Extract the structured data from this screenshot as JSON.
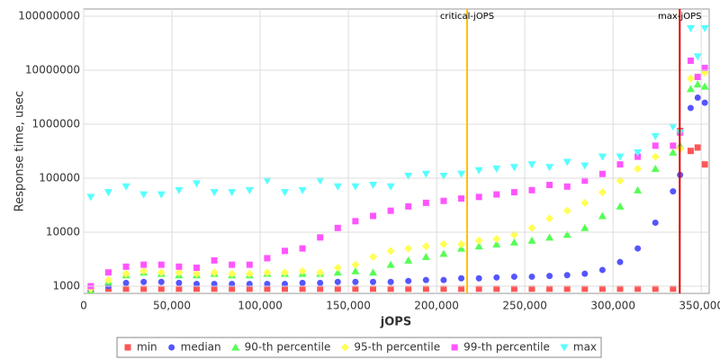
{
  "chart_data": {
    "type": "scatter",
    "y_label": "Response time, usec",
    "x_label": "jOPS",
    "log_y": true,
    "grid": true,
    "legend_position": "bottom",
    "xlim": [
      0,
      354500
    ],
    "ylim": [
      736,
      136000000
    ],
    "xticks": [
      0,
      {
        "value": 50000,
        "label": "50,000"
      },
      {
        "value": 100000,
        "label": "100,000"
      },
      {
        "value": 150000,
        "label": "150,000"
      },
      {
        "value": 200000,
        "label": "200,000"
      },
      {
        "value": 250000,
        "label": "250,000"
      },
      {
        "value": 300000,
        "label": "300,000"
      },
      {
        "value": 350000,
        "label": "350,000"
      }
    ],
    "yticks": [
      1000,
      10000,
      100000,
      1000000,
      10000000,
      100000000
    ],
    "annotations": [
      {
        "label": "critical-jOPS",
        "x": 217300,
        "color": "#ffc000"
      },
      {
        "label": "max-jOPS",
        "x": 337800,
        "color": "#e00000"
      }
    ],
    "x": [
      4000,
      14000,
      24000,
      34000,
      44000,
      54000,
      64000,
      74000,
      84000,
      94000,
      104000,
      114000,
      124000,
      134000,
      144000,
      154000,
      164000,
      174000,
      184000,
      194000,
      204000,
      214000,
      224000,
      234000,
      244000,
      254000,
      264000,
      274000,
      284000,
      294000,
      304000,
      314000,
      324000,
      334000,
      338000,
      344000,
      348000,
      352000
    ],
    "series": [
      {
        "name": "min",
        "color": "#ff5555",
        "marker": "square",
        "values": [
          900,
          900,
          900,
          900,
          900,
          900,
          900,
          900,
          900,
          900,
          900,
          900,
          900,
          900,
          900,
          900,
          900,
          900,
          900,
          900,
          900,
          900,
          900,
          900,
          900,
          900,
          900,
          900,
          900,
          900,
          900,
          900,
          900,
          900,
          750000,
          320000,
          370000,
          180000
        ]
      },
      {
        "name": "median",
        "color": "#5555ff",
        "marker": "circle",
        "values": [
          800,
          1000,
          1150,
          1200,
          1200,
          1150,
          1100,
          1100,
          1100,
          1100,
          1100,
          1100,
          1150,
          1150,
          1200,
          1200,
          1200,
          1200,
          1250,
          1300,
          1300,
          1400,
          1400,
          1450,
          1500,
          1500,
          1550,
          1600,
          1700,
          2000,
          2800,
          5000,
          15000,
          57000,
          115000,
          2000000,
          3100000,
          2500000
        ]
      },
      {
        "name": "90-th percentile",
        "color": "#55ff55",
        "marker": "triangle-up",
        "values": [
          800,
          1200,
          1600,
          1800,
          1700,
          1600,
          1600,
          1700,
          1600,
          1600,
          1700,
          1700,
          1700,
          1700,
          1800,
          1900,
          1800,
          2500,
          3000,
          3500,
          4000,
          5000,
          5500,
          6000,
          6500,
          7000,
          8000,
          9000,
          12000,
          20000,
          30000,
          60000,
          150000,
          300000,
          400000,
          4500000,
          5500000,
          5000000
        ]
      },
      {
        "name": "95-th percentile",
        "color": "#ffff55",
        "marker": "diamond",
        "values": [
          900,
          1300,
          1700,
          1900,
          1800,
          1800,
          1700,
          1800,
          1700,
          1700,
          1800,
          1800,
          1900,
          1800,
          2200,
          2500,
          3500,
          4500,
          5000,
          5500,
          6000,
          6000,
          7000,
          7500,
          9000,
          12000,
          18000,
          25000,
          35000,
          55000,
          90000,
          150000,
          250000,
          400000,
          350000,
          7000000,
          7500000,
          9000000
        ]
      },
      {
        "name": "99-th percentile",
        "color": "#ff55ff",
        "marker": "square",
        "values": [
          1000,
          1800,
          2300,
          2500,
          2500,
          2300,
          2200,
          3000,
          2500,
          2500,
          3300,
          4500,
          5000,
          8000,
          12000,
          16000,
          20000,
          25000,
          30000,
          35000,
          38000,
          42000,
          45000,
          50000,
          55000,
          60000,
          75000,
          70000,
          90000,
          120000,
          180000,
          250000,
          400000,
          400000,
          700000,
          15000000,
          7500000,
          11000000
        ]
      },
      {
        "name": "max",
        "color": "#55ffff",
        "marker": "triangle-down",
        "values": [
          45000,
          55000,
          70000,
          50000,
          50000,
          60000,
          80000,
          55000,
          55000,
          60000,
          90000,
          55000,
          60000,
          90000,
          70000,
          70000,
          75000,
          70000,
          110000,
          120000,
          110000,
          120000,
          140000,
          150000,
          160000,
          180000,
          160000,
          200000,
          170000,
          250000,
          250000,
          300000,
          600000,
          900000,
          700000,
          60000000,
          18000000,
          60000000
        ]
      }
    ]
  }
}
